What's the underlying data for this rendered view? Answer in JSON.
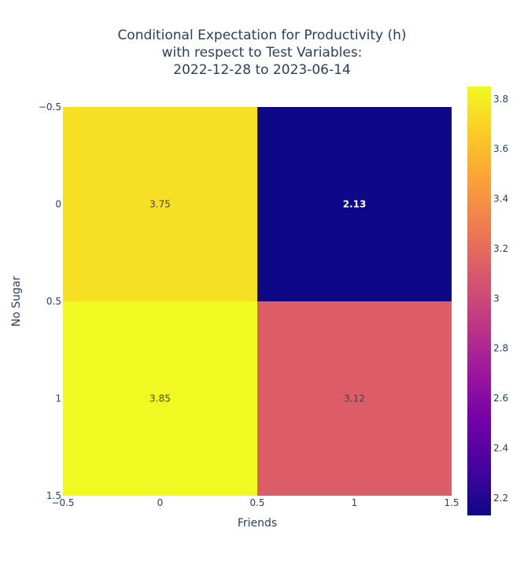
{
  "chart_data": {
    "type": "heatmap",
    "title": [
      "Conditional Expectation for Productivity (h)",
      "with respect to Test Variables:",
      "2022-12-28 to 2023-06-14"
    ],
    "xlabel": "Friends",
    "ylabel": "No Sugar",
    "x": [
      0,
      1
    ],
    "y": [
      0,
      1
    ],
    "z": [
      [
        3.75,
        2.13
      ],
      [
        3.85,
        3.12
      ]
    ],
    "cell_labels": [
      [
        "3.75",
        "2.13"
      ],
      [
        "3.85",
        "3.12"
      ]
    ],
    "xlim": [
      -0.5,
      1.5
    ],
    "ylim": [
      -0.5,
      1.5
    ],
    "y_reversed": true,
    "x_ticks": [
      -0.5,
      0,
      0.5,
      1,
      1.5
    ],
    "x_tick_labels": [
      "−0.5",
      "0",
      "0.5",
      "1",
      "1.5"
    ],
    "y_ticks": [
      -0.5,
      0,
      0.5,
      1,
      1.5
    ],
    "y_tick_labels": [
      "−0.5",
      "0",
      "0.5",
      "1",
      "1.5"
    ],
    "colorscale": "plasma",
    "colorbar": {
      "min": 2.13,
      "max": 3.85,
      "ticks": [
        2.2,
        2.4,
        2.6,
        2.8,
        3,
        3.2,
        3.4,
        3.6,
        3.8
      ],
      "tick_labels": [
        "2.2",
        "2.4",
        "2.6",
        "2.8",
        "3",
        "3.2",
        "3.4",
        "3.6",
        "3.8"
      ]
    },
    "grid": false
  }
}
